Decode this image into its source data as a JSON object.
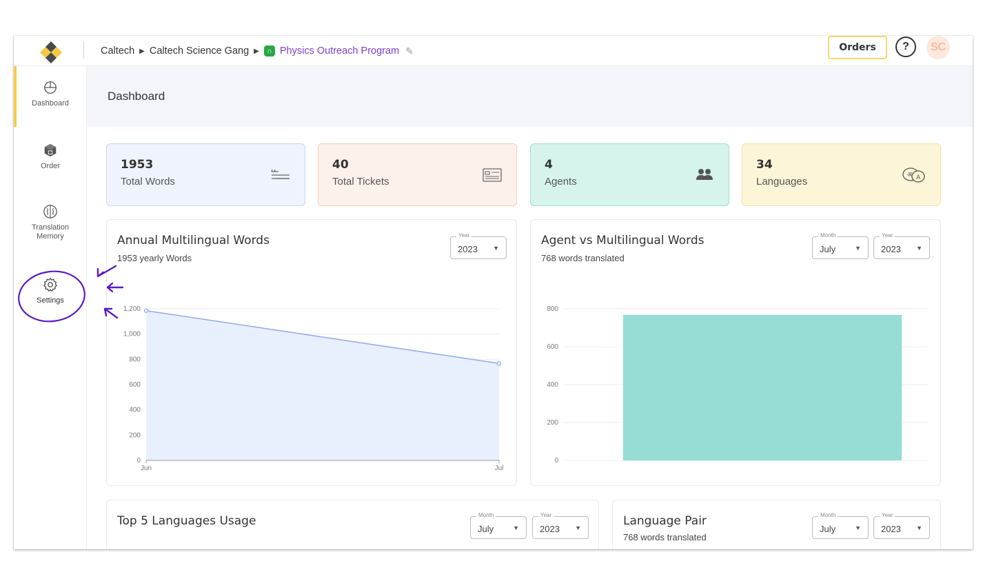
{
  "breadcrumb": {
    "items": [
      "Caltech",
      "Caltech Science Gang",
      "Physics Outreach Program"
    ]
  },
  "header": {
    "orders_label": "Orders",
    "help_label": "?",
    "avatar_initials": "SC"
  },
  "sidebar": {
    "items": [
      {
        "label": "Dashboard",
        "icon": "pie-chart-icon",
        "active": true
      },
      {
        "label": "Order",
        "icon": "box-icon"
      },
      {
        "label": "Translation Memory",
        "icon": "brain-icon"
      },
      {
        "label": "Settings",
        "icon": "gear-icon",
        "highlighted": true
      }
    ]
  },
  "page": {
    "title": "Dashboard"
  },
  "stats": [
    {
      "value": "1953",
      "label": "Total Words",
      "icon": "text-lines-icon",
      "bg": "#eef3fd",
      "border": "#c9d7f3"
    },
    {
      "value": "40",
      "label": "Total Tickets",
      "icon": "ticket-icon",
      "bg": "#fdf1ec",
      "border": "#f3cdbd"
    },
    {
      "value": "4",
      "label": "Agents",
      "icon": "users-icon",
      "bg": "#d6f3ee",
      "border": "#9fe0d3"
    },
    {
      "value": "34",
      "label": "Languages",
      "icon": "translate-icon",
      "bg": "#fdf5d8",
      "border": "#f2e1a2"
    }
  ],
  "annual_chart": {
    "title": "Annual Multilingual Words",
    "subtitle": "1953 yearly Words",
    "year_legend": "Year",
    "year_value": "2023",
    "chart_data": {
      "type": "area",
      "categories": [
        "Jun",
        "Jul"
      ],
      "values": [
        1185,
        768
      ],
      "ylim": [
        0,
        1200
      ],
      "yticks": [
        "0",
        "200",
        "400",
        "600",
        "800",
        "1,000",
        "1,200"
      ],
      "color": "#8fa9ef",
      "fill": "#e8effd"
    }
  },
  "agent_chart": {
    "title": "Agent vs Multilingual Words",
    "subtitle": "768 words translated",
    "month_legend": "Month",
    "month_value": "July",
    "year_legend": "Year",
    "year_value": "2023",
    "chart_data": {
      "type": "bar",
      "categories": [
        ""
      ],
      "values": [
        768
      ],
      "ylim": [
        0,
        800
      ],
      "yticks": [
        "0",
        "200",
        "400",
        "600",
        "800"
      ],
      "color": "#97ddd5"
    }
  },
  "top_languages": {
    "title": "Top 5 Languages Usage",
    "month_legend": "Month",
    "month_value": "July",
    "year_legend": "Year",
    "year_value": "2023"
  },
  "language_pair": {
    "title": "Language Pair",
    "subtitle": "768 words translated",
    "month_legend": "Month",
    "month_value": "July",
    "year_legend": "Year",
    "year_value": "2023"
  },
  "colors": {
    "accent": "#f5cf47",
    "brand_purple": "#7b3fd1",
    "annotation": "#5b18c9"
  }
}
